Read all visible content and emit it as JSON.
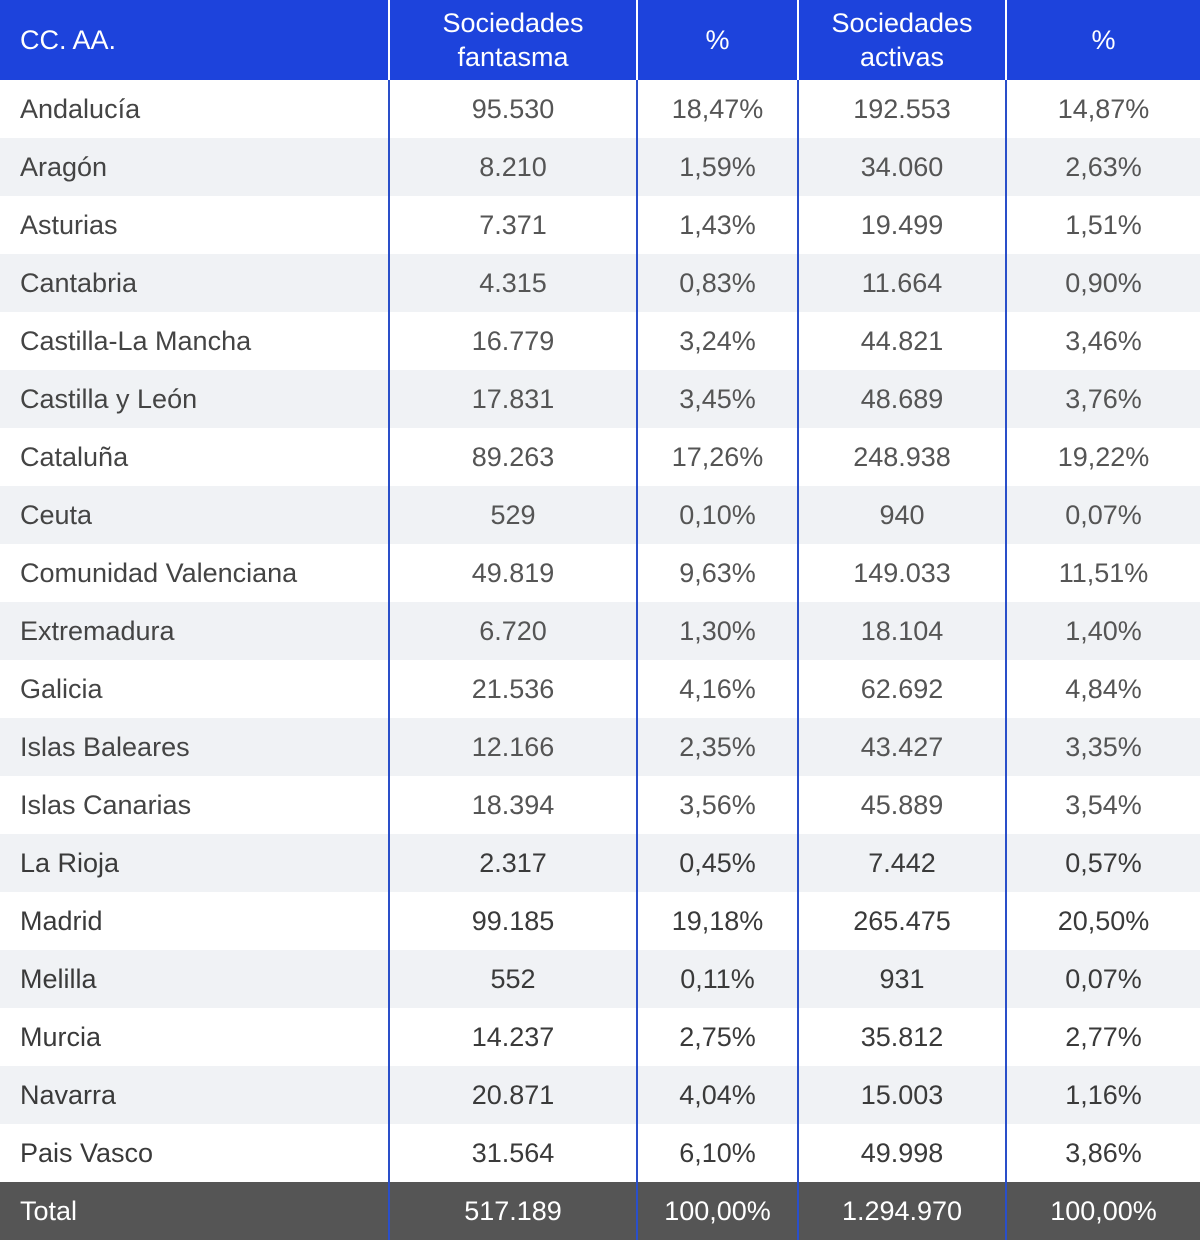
{
  "table": {
    "header": [
      "CC. AA.",
      "Sociedades fantasma",
      "%",
      "Sociedades activas",
      "%"
    ],
    "rows": [
      [
        "Andalucía",
        "95.530",
        "18,47%",
        "192.553",
        "14,87%"
      ],
      [
        "Aragón",
        "8.210",
        "1,59%",
        "34.060",
        "2,63%"
      ],
      [
        "Asturias",
        "7.371",
        "1,43%",
        "19.499",
        "1,51%"
      ],
      [
        "Cantabria",
        "4.315",
        "0,83%",
        "11.664",
        "0,90%"
      ],
      [
        "Castilla-La Mancha",
        "16.779",
        "3,24%",
        "44.821",
        "3,46%"
      ],
      [
        "Castilla y León",
        "17.831",
        "3,45%",
        "48.689",
        "3,76%"
      ],
      [
        "Cataluña",
        "89.263",
        "17,26%",
        "248.938",
        "19,22%"
      ],
      [
        "Ceuta",
        "529",
        "0,10%",
        "940",
        "0,07%"
      ],
      [
        "Comunidad Valenciana",
        "49.819",
        "9,63%",
        "149.033",
        "11,51%"
      ],
      [
        "Extremadura",
        "6.720",
        "1,30%",
        "18.104",
        "1,40%"
      ],
      [
        "Galicia",
        "21.536",
        "4,16%",
        "62.692",
        "4,84%"
      ],
      [
        "Islas Baleares",
        "12.166",
        "2,35%",
        "43.427",
        "3,35%"
      ],
      [
        "Islas Canarias",
        "18.394",
        "3,56%",
        "45.889",
        "3,54%"
      ],
      [
        "La Rioja",
        "2.317",
        "0,45%",
        "7.442",
        "0,57%"
      ],
      [
        "Madrid",
        "99.185",
        "19,18%",
        "265.475",
        "20,50%"
      ],
      [
        "Melilla",
        "552",
        "0,11%",
        "931",
        "0,07%"
      ],
      [
        "Murcia",
        "14.237",
        "2,75%",
        "35.812",
        "2,77%"
      ],
      [
        "Navarra",
        "20.871",
        "4,04%",
        "15.003",
        "1,16%"
      ],
      [
        "Pais Vasco",
        "31.564",
        "6,10%",
        "49.998",
        "3,86%"
      ]
    ],
    "total": [
      "Total",
      "517.189",
      "100,00%",
      "1.294.970",
      "100,00%"
    ]
  }
}
